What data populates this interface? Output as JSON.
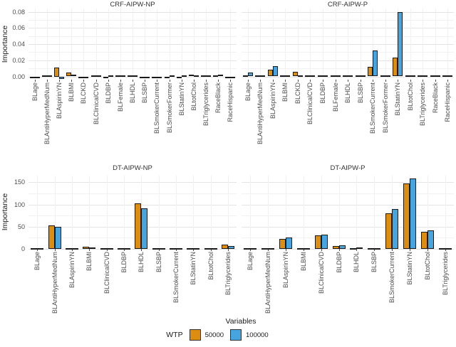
{
  "figure": {
    "ylabel": "Importance",
    "xlabel": "Variables",
    "legend": {
      "title": "WTP",
      "entries": [
        {
          "label": "50000",
          "color": "#DD8E10"
        },
        {
          "label": "100000",
          "color": "#46A4DE"
        }
      ]
    },
    "colors": {
      "bar_outline": "#1a1a1a",
      "grid_major": "#e4e4e4",
      "grid_minor": "#f1f1f1",
      "tick_text": "#4d4d4d"
    }
  },
  "chart_data": [
    {
      "type": "bar",
      "title": "CRF-AIPW-NP",
      "facet": {
        "row": 0,
        "col": 0
      },
      "legend_position": "bottom",
      "grid": true,
      "categories": [
        "BLage",
        "BLAntiHyperMedNum",
        "BLAspirinYN",
        "BLBMI",
        "BLCKD",
        "BLClinicalCVD",
        "BLDBP",
        "BLFemale",
        "BLHDL",
        "BLSBP",
        "BLSmokerCurrent",
        "BLSmokerFormer",
        "BLStatinYN",
        "BLtotChol",
        "BLTriglycerides",
        "RaceBlack",
        "RaceHispanic"
      ],
      "series": [
        {
          "name": "50000",
          "values": [
            -0.002,
            0.0,
            0.011,
            0.005,
            -0.001,
            0.0,
            -0.001,
            0.001,
            0.001,
            -0.001,
            -0.001,
            -0.001,
            -0.002,
            0.002,
            0.0,
            0.0,
            -0.001
          ]
        },
        {
          "name": "100000",
          "values": [
            -0.002,
            0.0,
            -0.003,
            0.002,
            -0.001,
            0.0,
            0.0,
            0.0,
            0.001,
            -0.001,
            -0.001,
            0.0,
            0.0,
            0.0,
            0.0,
            0.002,
            -0.001
          ]
        }
      ],
      "ylim": [
        -0.004,
        0.084
      ],
      "yticks": [
        0,
        0.02,
        0.04,
        0.06,
        0.08
      ],
      "ytick_labels": [
        "0.00",
        "0.02",
        "0.04",
        "0.06",
        "0.08"
      ]
    },
    {
      "type": "bar",
      "title": "CRF-AIPW-P",
      "facet": {
        "row": 0,
        "col": 1
      },
      "grid": true,
      "categories": [
        "BLage",
        "BLAntiHyperMedNum",
        "BLAspirinYN",
        "BLBMI",
        "BLCKD",
        "BLClinicalCVD",
        "BLDBP",
        "BLFemale",
        "BLHDL",
        "BLSBP",
        "BLSmokerCurrent",
        "BLSmokerFormer",
        "BLStatinYN",
        "BLtotChol",
        "BLTriglycerides",
        "RaceBlack",
        "RaceHispanic"
      ],
      "series": [
        {
          "name": "50000",
          "values": [
            0.001,
            0.0,
            0.008,
            0.0,
            0.006,
            0.0,
            0.001,
            0.0,
            0.0,
            0.0,
            0.012,
            0.0,
            0.023,
            0.0,
            0.0,
            0.0,
            0.001
          ]
        },
        {
          "name": "100000",
          "values": [
            0.005,
            0.0,
            0.013,
            0.0,
            0.0,
            0.0,
            0.0,
            0.0,
            0.0,
            0.0,
            0.032,
            0.0,
            0.08,
            0.0,
            0.0,
            0.0,
            0.0
          ]
        }
      ],
      "ylim": [
        -0.004,
        0.084
      ],
      "yticks": [
        0,
        0.02,
        0.04,
        0.06,
        0.08
      ],
      "ytick_labels": [
        "0.00",
        "0.02",
        "0.04",
        "0.06",
        "0.08"
      ]
    },
    {
      "type": "bar",
      "title": "DT-AIPW-NP",
      "facet": {
        "row": 1,
        "col": 0
      },
      "grid": true,
      "categories": [
        "BLage",
        "BLAntiHyperMedNum",
        "BLAspirinYN",
        "BLBMI",
        "BLClinicalCVD",
        "BLDBP",
        "BLHDL",
        "BLSBP",
        "BLSmokerCurrent",
        "BLStatinYN",
        "BLtotChol",
        "BLTriglycerides"
      ],
      "series": [
        {
          "name": "50000",
          "values": [
            0,
            53,
            0,
            5,
            0,
            1,
            102,
            1,
            0,
            0,
            0,
            10
          ]
        },
        {
          "name": "100000",
          "values": [
            0,
            50,
            0,
            4,
            0,
            1,
            92,
            1,
            0,
            0,
            0,
            7
          ]
        }
      ],
      "ylim": [
        0,
        165
      ],
      "yticks": [
        0,
        50,
        100,
        150
      ],
      "ytick_labels": [
        "0",
        "50",
        "100",
        "150"
      ]
    },
    {
      "type": "bar",
      "title": "DT-AIPW-P",
      "facet": {
        "row": 1,
        "col": 1
      },
      "grid": true,
      "categories": [
        "BLage",
        "BLAntiHyperMedNum",
        "BLAspirinYN",
        "BLBMI",
        "BLClinicalCVD",
        "BLDBP",
        "BLHDL",
        "BLSBP",
        "BLSmokerCurrent",
        "BLStatinYN",
        "BLtotChol",
        "BLTriglycerides"
      ],
      "series": [
        {
          "name": "50000",
          "values": [
            2,
            0,
            22,
            1,
            30,
            6,
            2,
            0,
            80,
            147,
            38,
            1
          ]
        },
        {
          "name": "100000",
          "values": [
            2,
            0,
            26,
            1,
            32,
            8,
            3,
            0,
            90,
            158,
            42,
            1
          ]
        }
      ],
      "ylim": [
        0,
        165
      ],
      "yticks": [
        0,
        50,
        100,
        150
      ],
      "ytick_labels": [
        "0",
        "50",
        "100",
        "150"
      ]
    }
  ]
}
